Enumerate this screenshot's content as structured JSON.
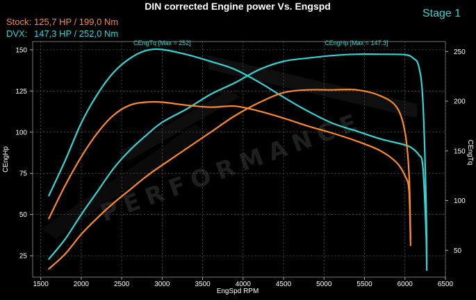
{
  "chart_data": {
    "type": "line",
    "title": "DIN corrected Engine power Vs. Engspd",
    "stage_label": "Stage 1",
    "legend": [
      {
        "label": "Stock:",
        "value": "125,7 HP / 199,0 Nm",
        "color": "#ff8a2a"
      },
      {
        "label": "DVX:",
        "value": "147,3 HP / 252,0 Nm",
        "color": "#33d6d6"
      }
    ],
    "xlabel": "EngSpd RPM",
    "ylabel_left": "CEngHp",
    "ylabel_right": "CEngTq",
    "xlim": [
      1400,
      6500
    ],
    "ylim_left": [
      12,
      155
    ],
    "ylim_right": [
      23,
      260
    ],
    "x_ticks": [
      1500,
      2000,
      2500,
      3000,
      3500,
      4000,
      4500,
      5000,
      5500,
      6000,
      6500
    ],
    "y_left_ticks": [
      25,
      50,
      75,
      100,
      125,
      150
    ],
    "y_right_ticks": [
      50,
      100,
      150,
      200,
      250
    ],
    "watermark": "PERFORMANCE",
    "annotations": [
      {
        "text": "CEngTq [Max = 252]",
        "x": 3000,
        "y": 153,
        "axis": "left"
      },
      {
        "text": "CEngHp [Max = 147.3]",
        "x": 5400,
        "y": 153,
        "axis": "left"
      }
    ],
    "series": [
      {
        "name": "DVX CEngTq",
        "color": "#33d6d6",
        "axis": "right",
        "x": [
          1600,
          1800,
          2000,
          2200,
          2400,
          2600,
          2800,
          3000,
          3300,
          3600,
          3900,
          4200,
          4500,
          4800,
          5100,
          5400,
          5700,
          6000,
          6100,
          6170,
          6220,
          6260,
          6270
        ],
        "y": [
          105,
          140,
          178,
          207,
          229,
          243,
          251,
          252,
          247,
          240,
          232,
          219,
          204,
          190,
          178,
          170,
          162,
          156,
          152,
          146,
          135,
          70,
          30
        ]
      },
      {
        "name": "DVX CEngHp",
        "color": "#33d6d6",
        "axis": "left",
        "x": [
          1600,
          1800,
          2000,
          2200,
          2400,
          2600,
          2800,
          3000,
          3300,
          3600,
          3900,
          4200,
          4500,
          4800,
          5100,
          5400,
          5700,
          6000,
          6100,
          6170,
          6220,
          6260,
          6270
        ],
        "y": [
          23,
          35,
          50,
          64,
          78,
          89,
          98,
          106,
          114,
          123,
          130,
          138,
          143,
          145,
          146.5,
          147.3,
          147.3,
          147,
          145,
          140,
          120,
          60,
          20
        ]
      },
      {
        "name": "Stock CEngTq",
        "color": "#ff8a2a",
        "axis": "right",
        "x": [
          1600,
          1800,
          2000,
          2200,
          2400,
          2600,
          2800,
          3000,
          3300,
          3600,
          3900,
          4200,
          4500,
          4800,
          5100,
          5400,
          5700,
          5900,
          6000,
          6050,
          6070
        ],
        "y": [
          82,
          115,
          144,
          168,
          186,
          196,
          199,
          199,
          196,
          194,
          195,
          190,
          183,
          175,
          168,
          160,
          150,
          138,
          125,
          110,
          55
        ]
      },
      {
        "name": "Stock CEngHp",
        "color": "#ff8a2a",
        "axis": "left",
        "x": [
          1600,
          1800,
          2000,
          2200,
          2400,
          2600,
          2800,
          3000,
          3300,
          3600,
          3900,
          4200,
          4500,
          4800,
          5100,
          5400,
          5700,
          5900,
          6000,
          6050,
          6070
        ],
        "y": [
          17,
          26,
          38,
          48,
          57,
          65,
          73,
          80,
          90,
          100,
          110,
          118,
          124,
          125.7,
          125.7,
          125.7,
          122,
          115,
          100,
          75,
          35
        ]
      }
    ]
  }
}
